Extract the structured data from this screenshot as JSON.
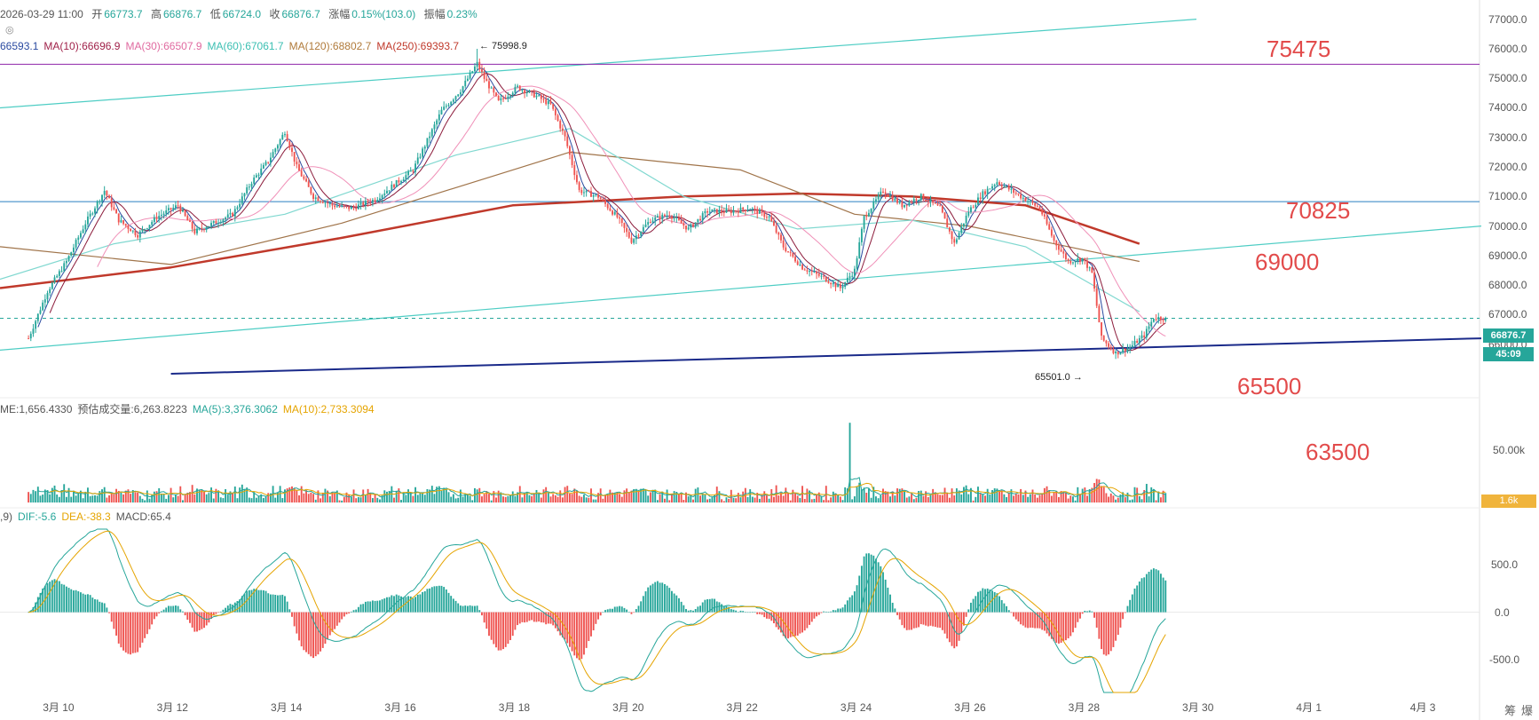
{
  "header": {
    "datetime": "2026-03-29 11:00",
    "open_label": "开",
    "open": "66773.7",
    "high_label": "高",
    "high": "66876.7",
    "low_label": "低",
    "low": "66724.0",
    "close_label": "收",
    "close": "66876.7",
    "change_label": "涨幅",
    "change": "0.15%(103.0)",
    "amplitude_label": "振幅",
    "amplitude": "0.23%"
  },
  "ma_legend": [
    {
      "text": "66593.1",
      "color": "#2a4aa0"
    },
    {
      "text": "MA(10):66696.9",
      "color": "#a0224a"
    },
    {
      "text": "MA(30):66507.9",
      "color": "#e06aa0"
    },
    {
      "text": "MA(60):67061.7",
      "color": "#3bbfb2"
    },
    {
      "text": "MA(120):68802.7",
      "color": "#b07a3a"
    },
    {
      "text": "MA(250):69393.7",
      "color": "#c0392b"
    }
  ],
  "volume_legend": [
    {
      "text": "ME:1,656.4330",
      "color": "#555555"
    },
    {
      "text": "预估成交量:6,263.8223",
      "color": "#555555"
    },
    {
      "text": "MA(5):3,376.3062",
      "color": "#26a69a"
    },
    {
      "text": "MA(10):2,733.3094",
      "color": "#e5a400"
    }
  ],
  "macd_legend": [
    {
      "text": ",9)",
      "color": "#555555"
    },
    {
      "text": "DIF:-5.6",
      "color": "#26a69a"
    },
    {
      "text": "DEA:-38.3",
      "color": "#e5a400"
    },
    {
      "text": "MACD:65.4",
      "color": "#555555"
    }
  ],
  "annotations": {
    "high_marker": "← 75998.9",
    "low_marker": "65501.0 →"
  },
  "levels": [
    "75475",
    "70825",
    "69000",
    "65500",
    "63500"
  ],
  "price_tag": "66876.7",
  "countdown_tag": "45:09",
  "volume_tag": "1.6k",
  "price_axis": [
    "77000.0",
    "76000.0",
    "75000.0",
    "74000.0",
    "73000.0",
    "72000.0",
    "71000.0",
    "70000.0",
    "69000.0",
    "68000.0",
    "67000.0",
    "66000.0"
  ],
  "volume_axis": [
    "50.00k"
  ],
  "macd_axis": [
    "500.0",
    "0.0",
    "-500.0"
  ],
  "x_axis": [
    "3月 10",
    "3月 12",
    "3月 14",
    "3月 16",
    "3月 18",
    "3月 20",
    "3月 22",
    "3月 24",
    "3月 26",
    "3月 28",
    "3月 30",
    "4月 1",
    "4月 3"
  ],
  "corner_text": [
    "筹",
    "爆"
  ],
  "chart_data": {
    "type": "candlestick",
    "interval": "hourly",
    "x_range": [
      "2026-03-09",
      "2026-04-04"
    ],
    "price_range": [
      65000,
      77200
    ],
    "anchor_points": [
      [
        "03-09 12:00",
        66200
      ],
      [
        "03-09 20:00",
        67800
      ],
      [
        "03-10 04:00",
        68800
      ],
      [
        "03-10 12:00",
        70100
      ],
      [
        "03-10 20:00",
        71200
      ],
      [
        "03-11 02:00",
        70200
      ],
      [
        "03-11 10:00",
        69700
      ],
      [
        "03-11 18:00",
        70300
      ],
      [
        "03-12 03:00",
        70700
      ],
      [
        "03-12 10:00",
        69800
      ],
      [
        "03-12 18:00",
        70100
      ],
      [
        "03-13 02:00",
        70400
      ],
      [
        "03-13 10:00",
        71500
      ],
      [
        "03-13 17:00",
        72200
      ],
      [
        "03-14 00:00",
        73200
      ],
      [
        "03-14 05:00",
        72000
      ],
      [
        "03-14 12:00",
        71000
      ],
      [
        "03-14 20:00",
        70700
      ],
      [
        "03-15 04:00",
        70600
      ],
      [
        "03-15 14:00",
        70900
      ],
      [
        "03-15 22:00",
        71400
      ],
      [
        "03-16 06:00",
        71900
      ],
      [
        "03-16 12:00",
        72900
      ],
      [
        "03-16 18:00",
        73900
      ],
      [
        "03-17 02:00",
        74600
      ],
      [
        "03-17 09:00",
        75500
      ],
      [
        "03-17 12:00",
        75000
      ],
      [
        "03-17 18:00",
        74200
      ],
      [
        "03-18 02:00",
        74700
      ],
      [
        "03-18 10:00",
        74400
      ],
      [
        "03-18 16:00",
        74100
      ],
      [
        "03-18 22:00",
        73000
      ],
      [
        "03-19 04:00",
        71200
      ],
      [
        "03-19 12:00",
        71000
      ],
      [
        "03-19 20:00",
        70300
      ],
      [
        "03-20 02:00",
        69500
      ],
      [
        "03-20 10:00",
        70200
      ],
      [
        "03-20 18:00",
        70400
      ],
      [
        "03-21 02:00",
        69900
      ],
      [
        "03-21 10:00",
        70500
      ],
      [
        "03-21 20:00",
        70500
      ],
      [
        "03-22 04:00",
        70600
      ],
      [
        "03-22 12:00",
        70300
      ],
      [
        "03-22 18:00",
        69300
      ],
      [
        "03-23 02:00",
        68600
      ],
      [
        "03-23 12:00",
        68200
      ],
      [
        "03-23 18:00",
        67900
      ],
      [
        "03-24 00:00",
        68500
      ],
      [
        "03-24 04:00",
        70300
      ],
      [
        "03-24 12:00",
        71200
      ],
      [
        "03-24 20:00",
        70700
      ],
      [
        "03-25 04:00",
        71000
      ],
      [
        "03-25 12:00",
        70600
      ],
      [
        "03-25 18:00",
        69400
      ],
      [
        "03-26 00:00",
        70500
      ],
      [
        "03-26 06:00",
        71100
      ],
      [
        "03-26 12:00",
        71500
      ],
      [
        "03-26 18:00",
        71200
      ],
      [
        "03-27 00:00",
        70900
      ],
      [
        "03-27 06:00",
        70600
      ],
      [
        "03-27 12:00",
        69500
      ],
      [
        "03-27 18:00",
        68800
      ],
      [
        "03-28 00:00",
        68900
      ],
      [
        "03-28 04:00",
        68400
      ],
      [
        "03-28 08:00",
        66200
      ],
      [
        "03-28 14:00",
        65700
      ],
      [
        "03-28 20:00",
        65900
      ],
      [
        "03-29 02:00",
        66300
      ],
      [
        "03-29 06:00",
        66900
      ],
      [
        "03-29 11:00",
        66877
      ]
    ],
    "high": 75998.9,
    "low": 65501.0,
    "last": 66876.7,
    "ma_curves": {
      "MA120": [
        [
          "03-09",
          69300
        ],
        [
          "03-12",
          68700
        ],
        [
          "03-15",
          70100
        ],
        [
          "03-18",
          71900
        ],
        [
          "03-19",
          72500
        ],
        [
          "03-22",
          71900
        ],
        [
          "03-24",
          70400
        ],
        [
          "03-26",
          70000
        ],
        [
          "03-29",
          68800
        ]
      ],
      "MA250": [
        [
          "03-09",
          67900
        ],
        [
          "03-12",
          68600
        ],
        [
          "03-15",
          69600
        ],
        [
          "03-18",
          70700
        ],
        [
          "03-21",
          71000
        ],
        [
          "03-23",
          71100
        ],
        [
          "03-25",
          71000
        ],
        [
          "03-27",
          70700
        ],
        [
          "03-29",
          69400
        ]
      ],
      "MA60": [
        [
          "03-09",
          68200
        ],
        [
          "03-11",
          69400
        ],
        [
          "03-14",
          70400
        ],
        [
          "03-17",
          72400
        ],
        [
          "03-19",
          73300
        ],
        [
          "03-21",
          71000
        ],
        [
          "03-23",
          69900
        ],
        [
          "03-25",
          70200
        ],
        [
          "03-27",
          69300
        ],
        [
          "03-29",
          67100
        ]
      ]
    },
    "trend_lines": [
      {
        "name": "upper channel",
        "from": [
          "03-09",
          74000
        ],
        "to": [
          "03-30",
          77000
        ]
      },
      {
        "name": "lower channel",
        "from": [
          "03-09",
          65800
        ],
        "to": [
          "04-04",
          70000
        ]
      },
      {
        "name": "support",
        "from": [
          "03-12",
          65000
        ],
        "to": [
          "04-04",
          66200
        ]
      }
    ],
    "horizontal_levels": [
      75475,
      70825,
      66876.7
    ],
    "volume_range": [
      0,
      62000
    ],
    "volume_spike": {
      "at": "03-23 22:00",
      "value": 58000
    },
    "macd_range": [
      -850,
      880
    ]
  },
  "colors": {
    "up": "#26a69a",
    "down": "#ef5350",
    "ma5": "#2a4aa0",
    "ma10": "#8b1a3a",
    "ma30": "#f090b8",
    "ma60": "#80d8d0",
    "ma120": "#a0744a",
    "ma250": "#c0392b",
    "channel": "#4ecdc4",
    "support": "#1a2a8a",
    "level": "#8e24aa"
  }
}
